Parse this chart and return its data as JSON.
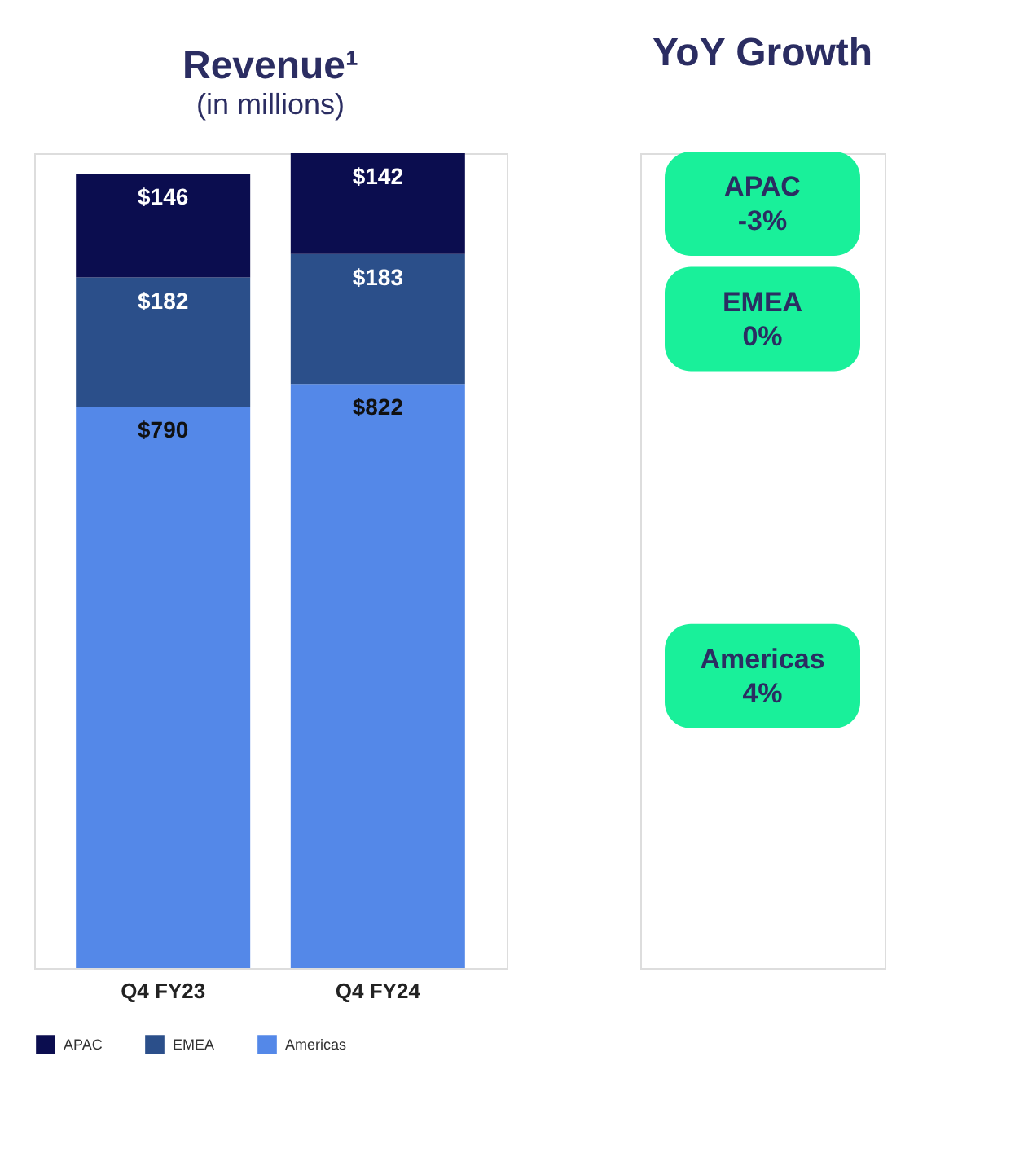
{
  "chart_data": {
    "type": "bar",
    "stacked": true,
    "title": "Revenue¹",
    "subtitle": "(in millions)",
    "categories": [
      "Q4 FY23",
      "Q4 FY24"
    ],
    "series": [
      {
        "name": "Americas",
        "color": "#5488e8",
        "values": [
          790,
          822
        ],
        "value_labels": [
          "$790",
          "$822"
        ]
      },
      {
        "name": "EMEA",
        "color": "#2b4f8a",
        "values": [
          182,
          183
        ],
        "value_labels": [
          "$182",
          "$183"
        ]
      },
      {
        "name": "APAC",
        "color": "#0b0d4f",
        "values": [
          146,
          142
        ],
        "value_labels": [
          "$146",
          "$142"
        ]
      }
    ],
    "annotations": [
      "YoY Growth",
      "Americas\n4%",
      "EMEA\n0%",
      "APAC\n-3%"
    ],
    "legend": "bottom",
    "grid": false
  }
}
